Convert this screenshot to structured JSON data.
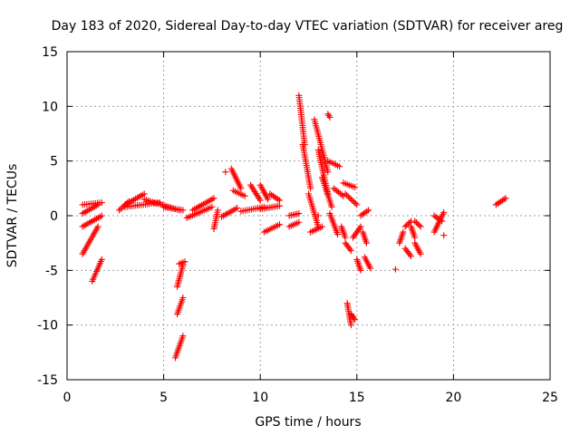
{
  "chart_data": {
    "type": "scatter",
    "title": "Day 183 of 2020, Sidereal Day-to-day VTEC variation (SDTVAR) for receiver areg",
    "xlabel": "GPS time / hours",
    "ylabel": "SDTVAR / TECUs",
    "xlim": [
      0,
      25
    ],
    "ylim": [
      -15,
      15
    ],
    "xticks": [
      0,
      5,
      10,
      15,
      20,
      25
    ],
    "yticks": [
      -15,
      -10,
      -5,
      0,
      5,
      10,
      15
    ],
    "grid": true,
    "marker": "+",
    "color": "#ff0000",
    "series": [
      {
        "name": "SDTVAR",
        "segments": [
          [
            0.8,
            1.0,
            1.8,
            1.2
          ],
          [
            0.8,
            0.2,
            1.6,
            1.0
          ],
          [
            0.8,
            -1.0,
            1.8,
            0.0
          ],
          [
            0.8,
            -3.5,
            1.6,
            -1.0
          ],
          [
            1.3,
            -6.0,
            1.8,
            -4.0
          ],
          [
            2.7,
            0.5,
            3.2,
            1.3
          ],
          [
            3.0,
            1.0,
            4.0,
            2.0
          ],
          [
            3.0,
            0.8,
            4.8,
            1.2
          ],
          [
            4.0,
            1.5,
            5.8,
            0.5
          ],
          [
            5.0,
            0.8,
            6.0,
            0.5
          ],
          [
            5.6,
            -13.0,
            6.0,
            -11.0
          ],
          [
            5.7,
            -9.0,
            6.0,
            -7.5
          ],
          [
            5.7,
            -6.5,
            6.0,
            -4.5
          ],
          [
            5.8,
            -4.4,
            6.1,
            -4.2
          ],
          [
            6.2,
            -0.2,
            7.5,
            0.8
          ],
          [
            6.5,
            0.5,
            7.6,
            1.6
          ],
          [
            7.6,
            -1.2,
            7.8,
            0.5
          ],
          [
            8.0,
            -0.1,
            8.8,
            0.7
          ],
          [
            8.5,
            4.3,
            9.0,
            2.5
          ],
          [
            8.6,
            2.3,
            9.2,
            1.8
          ],
          [
            9.0,
            0.4,
            10.2,
            0.8
          ],
          [
            9.5,
            2.8,
            10.0,
            1.4
          ],
          [
            10.0,
            2.8,
            10.4,
            1.5
          ],
          [
            10.0,
            0.6,
            11.0,
            0.9
          ],
          [
            10.5,
            2.0,
            11.0,
            1.4
          ],
          [
            10.2,
            -1.5,
            11.0,
            -0.8
          ],
          [
            11.5,
            0.0,
            12.0,
            0.2
          ],
          [
            11.5,
            -1.0,
            12.0,
            -0.6
          ],
          [
            12.0,
            11.0,
            12.3,
            6.5
          ],
          [
            12.2,
            6.5,
            12.6,
            2.5
          ],
          [
            12.5,
            2.0,
            13.0,
            -1.0
          ],
          [
            12.6,
            -1.5,
            13.2,
            -1.0
          ],
          [
            12.8,
            8.8,
            13.5,
            4.0
          ],
          [
            13.0,
            6.0,
            13.5,
            2.0
          ],
          [
            13.2,
            3.5,
            13.7,
            0.8
          ],
          [
            13.5,
            9.3,
            13.6,
            9.0
          ],
          [
            13.5,
            5.0,
            14.1,
            4.5
          ],
          [
            13.6,
            0.2,
            14.0,
            -1.7
          ],
          [
            13.8,
            2.5,
            14.3,
            1.8
          ],
          [
            14.2,
            -1.0,
            14.4,
            -2.0
          ],
          [
            14.4,
            -2.5,
            14.7,
            -3.2
          ],
          [
            14.3,
            3.0,
            14.9,
            2.6
          ],
          [
            14.4,
            2.0,
            15.0,
            1.0
          ],
          [
            14.5,
            -8.0,
            14.7,
            -10.0
          ],
          [
            14.7,
            -9.0,
            14.9,
            -9.5
          ],
          [
            14.8,
            -2.0,
            15.2,
            -1.0
          ],
          [
            15.0,
            -4.0,
            15.2,
            -5.0
          ],
          [
            15.3,
            -1.5,
            15.5,
            -2.5
          ],
          [
            15.4,
            -3.8,
            15.7,
            -4.8
          ],
          [
            15.2,
            0.0,
            15.6,
            0.5
          ],
          [
            17.2,
            -2.5,
            17.4,
            -1.5
          ],
          [
            17.5,
            -1.0,
            17.8,
            -0.5
          ],
          [
            17.5,
            -3.0,
            17.8,
            -3.7
          ],
          [
            17.8,
            -1.0,
            18.0,
            -2.0
          ],
          [
            18.0,
            -2.5,
            18.3,
            -3.5
          ],
          [
            18.0,
            -0.5,
            18.3,
            -1.0
          ],
          [
            19.0,
            -1.5,
            19.5,
            0.3
          ],
          [
            19.0,
            0.0,
            19.4,
            -0.5
          ],
          [
            22.2,
            1.0,
            22.7,
            1.6
          ]
        ],
        "points": [
          [
            17.0,
            -4.9
          ],
          [
            19.5,
            -1.8
          ],
          [
            8.2,
            4.0
          ],
          [
            13.0,
            0.0
          ]
        ]
      }
    ]
  }
}
